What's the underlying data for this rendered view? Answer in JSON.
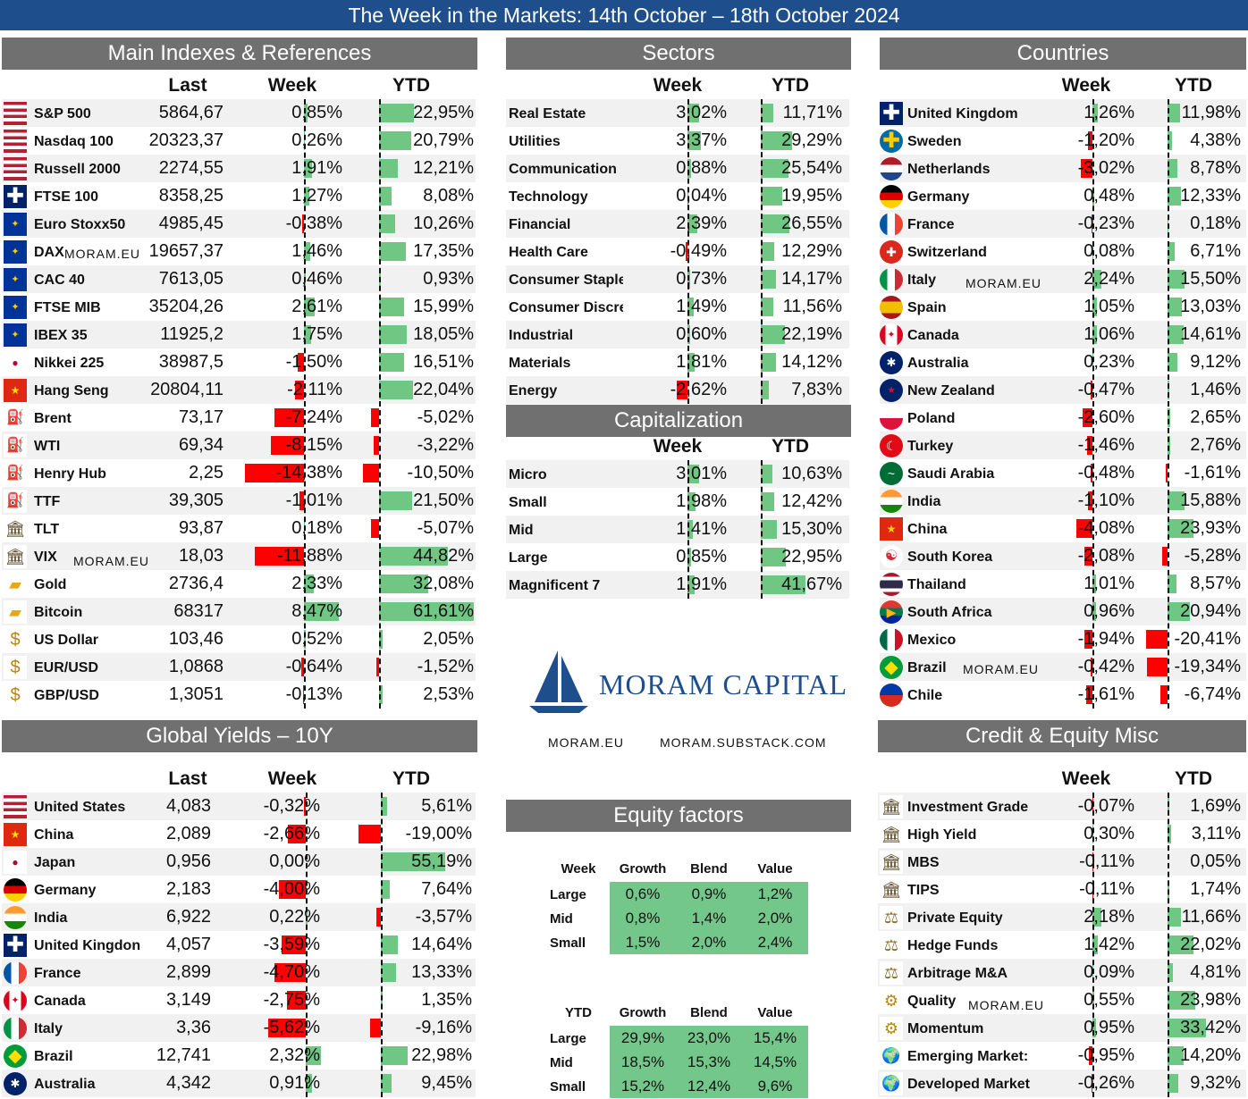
{
  "title": "The Week in the Markets: 14th October – 18th October 2024",
  "colors": {
    "up": "#70c784",
    "down": "#ff0000",
    "header": "#707070",
    "title": "#1f4e8c"
  },
  "watermark": "MORAM.EU",
  "logo": {
    "name": "MORAM CAPITAL",
    "links": [
      "MORAM.EU",
      "MORAM.SUBSTACK.COM"
    ]
  },
  "main": {
    "title": "Main Indexes & References",
    "headers": [
      "Last",
      "Week",
      "YTD"
    ],
    "rows": [
      {
        "icon": "us-flag-icon",
        "name": "S&P 500",
        "last": "5864,67",
        "week": "0,85%",
        "ytd": "22,95%",
        "w": 0.85,
        "y": 22.95
      },
      {
        "icon": "us-flag-icon",
        "name": "Nasdaq 100",
        "last": "20323,37",
        "week": "0,26%",
        "ytd": "20,79%",
        "w": 0.26,
        "y": 20.79
      },
      {
        "icon": "us-flag-icon",
        "name": "Russell 2000",
        "last": "2274,55",
        "week": "1,91%",
        "ytd": "12,21%",
        "w": 1.91,
        "y": 12.21
      },
      {
        "icon": "uk-flag-icon",
        "name": "FTSE 100",
        "last": "8358,25",
        "week": "1,27%",
        "ytd": "8,08%",
        "w": 1.27,
        "y": 8.08
      },
      {
        "icon": "eu-flag-icon",
        "name": "Euro Stoxx50",
        "last": "4985,45",
        "week": "-0,38%",
        "ytd": "10,26%",
        "w": -0.38,
        "y": 10.26
      },
      {
        "icon": "eu-flag-icon",
        "name": "DAX",
        "last": "19657,37",
        "week": "1,46%",
        "ytd": "17,35%",
        "w": 1.46,
        "y": 17.35
      },
      {
        "icon": "eu-flag-icon",
        "name": "CAC 40",
        "last": "7613,05",
        "week": "0,46%",
        "ytd": "0,93%",
        "w": 0.46,
        "y": 0.93
      },
      {
        "icon": "eu-flag-icon",
        "name": "FTSE MIB",
        "last": "35204,26",
        "week": "2,61%",
        "ytd": "15,99%",
        "w": 2.61,
        "y": 15.99
      },
      {
        "icon": "eu-flag-icon",
        "name": "IBEX 35",
        "last": "11925,2",
        "week": "1,75%",
        "ytd": "18,05%",
        "w": 1.75,
        "y": 18.05
      },
      {
        "icon": "japan-flag-icon",
        "name": "Nikkei 225",
        "last": "38987,5",
        "week": "-1,50%",
        "ytd": "16,51%",
        "w": -1.5,
        "y": 16.51
      },
      {
        "icon": "china-flag-icon",
        "name": "Hang Seng",
        "last": "20804,11",
        "week": "-2,11%",
        "ytd": "22,04%",
        "w": -2.11,
        "y": 22.04
      },
      {
        "icon": "oil-rig-icon",
        "name": "Brent",
        "last": "73,17",
        "week": "-7,24%",
        "ytd": "-5,02%",
        "w": -7.24,
        "y": -5.02
      },
      {
        "icon": "oil-rig-icon",
        "name": "WTI",
        "last": "69,34",
        "week": "-8,15%",
        "ytd": "-3,22%",
        "w": -8.15,
        "y": -3.22
      },
      {
        "icon": "oil-rig-icon",
        "name": "Henry Hub",
        "last": "2,25",
        "week": "-14,38%",
        "ytd": "-10,50%",
        "w": -14.38,
        "y": -10.5
      },
      {
        "icon": "oil-rig-icon",
        "name": "TTF",
        "last": "39,305",
        "week": "-1,01%",
        "ytd": "21,50%",
        "w": -1.01,
        "y": 21.5
      },
      {
        "icon": "bank-icon",
        "name": "TLT",
        "last": "93,87",
        "week": "0,18%",
        "ytd": "-5,07%",
        "w": 0.18,
        "y": -5.07
      },
      {
        "icon": "bank-icon",
        "name": "VIX",
        "last": "18,03",
        "week": "-11,88%",
        "ytd": "44,82%",
        "w": -11.88,
        "y": 44.82
      },
      {
        "icon": "gold-icon",
        "name": "Gold",
        "last": "2736,4",
        "week": "2,33%",
        "ytd": "32,08%",
        "w": 2.33,
        "y": 32.08
      },
      {
        "icon": "gold-icon",
        "name": "Bitcoin",
        "last": "68317",
        "week": "8,47%",
        "ytd": "61,61%",
        "w": 8.47,
        "y": 61.61
      },
      {
        "icon": "coins-icon",
        "name": "US Dollar",
        "last": "103,46",
        "week": "0,52%",
        "ytd": "2,05%",
        "w": 0.52,
        "y": 2.05
      },
      {
        "icon": "coins-icon",
        "name": "EUR/USD",
        "last": "1,0868",
        "week": "-0,64%",
        "ytd": "-1,52%",
        "w": -0.64,
        "y": -1.52
      },
      {
        "icon": "coins-icon",
        "name": "GBP/USD",
        "last": "1,3051",
        "week": "-0,13%",
        "ytd": "2,53%",
        "w": -0.13,
        "y": 2.53
      }
    ]
  },
  "sectors": {
    "title": "Sectors",
    "headers": [
      "Week",
      "YTD"
    ],
    "rows": [
      {
        "name": "Real Estate",
        "week": "3,02%",
        "ytd": "11,71%",
        "w": 3.02,
        "y": 11.71
      },
      {
        "name": "Utilities",
        "week": "3,37%",
        "ytd": "29,29%",
        "w": 3.37,
        "y": 29.29
      },
      {
        "name": "Communication",
        "week": "0,88%",
        "ytd": "25,54%",
        "w": 0.88,
        "y": 25.54
      },
      {
        "name": "Technology",
        "week": "0,04%",
        "ytd": "19,95%",
        "w": 0.04,
        "y": 19.95
      },
      {
        "name": "Financial",
        "week": "2,39%",
        "ytd": "26,55%",
        "w": 2.39,
        "y": 26.55
      },
      {
        "name": "Health Care",
        "week": "-0,49%",
        "ytd": "12,29%",
        "w": -0.49,
        "y": 12.29
      },
      {
        "name": "Consumer Staple",
        "week": "0,73%",
        "ytd": "14,17%",
        "w": 0.73,
        "y": 14.17
      },
      {
        "name": "Consumer Discre",
        "week": "1,49%",
        "ytd": "11,56%",
        "w": 1.49,
        "y": 11.56
      },
      {
        "name": "Industrial",
        "week": "0,60%",
        "ytd": "22,19%",
        "w": 0.6,
        "y": 22.19
      },
      {
        "name": "Materials",
        "week": "1,81%",
        "ytd": "14,12%",
        "w": 1.81,
        "y": 14.12
      },
      {
        "name": "Energy",
        "week": "-2,62%",
        "ytd": "7,83%",
        "w": -2.62,
        "y": 7.83
      }
    ]
  },
  "cap": {
    "title": "Capitalization",
    "headers": [
      "Week",
      "YTD"
    ],
    "rows": [
      {
        "name": "Micro",
        "week": "3,01%",
        "ytd": "10,63%",
        "w": 3.01,
        "y": 10.63
      },
      {
        "name": "Small",
        "week": "1,98%",
        "ytd": "12,42%",
        "w": 1.98,
        "y": 12.42
      },
      {
        "name": "Mid",
        "week": "1,41%",
        "ytd": "15,30%",
        "w": 1.41,
        "y": 15.3
      },
      {
        "name": "Large",
        "week": "0,85%",
        "ytd": "22,95%",
        "w": 0.85,
        "y": 22.95
      },
      {
        "name": "Magnificent 7",
        "week": "1,91%",
        "ytd": "41,67%",
        "w": 1.91,
        "y": 41.67
      }
    ]
  },
  "countries": {
    "title": "Countries",
    "headers": [
      "Week",
      "YTD"
    ],
    "rows": [
      {
        "icon": "uk-flag-icon",
        "name": "United Kingdom",
        "week": "1,26%",
        "ytd": "11,98%",
        "w": 1.26,
        "y": 11.98
      },
      {
        "icon": "sweden-flag-icon",
        "name": "Sweden",
        "week": "-1,20%",
        "ytd": "4,38%",
        "w": -1.2,
        "y": 4.38
      },
      {
        "icon": "netherlands-flag-icon",
        "name": "Netherlands",
        "week": "-3,02%",
        "ytd": "8,78%",
        "w": -3.02,
        "y": 8.78
      },
      {
        "icon": "germany-flag-icon",
        "name": "Germany",
        "week": "0,48%",
        "ytd": "12,33%",
        "w": 0.48,
        "y": 12.33
      },
      {
        "icon": "france-flag-icon",
        "name": "France",
        "week": "-0,23%",
        "ytd": "0,18%",
        "w": -0.23,
        "y": 0.18
      },
      {
        "icon": "switzerland-flag-icon",
        "name": "Switzerland",
        "week": "0,08%",
        "ytd": "6,71%",
        "w": 0.08,
        "y": 6.71
      },
      {
        "icon": "italy-flag-icon",
        "name": "Italy",
        "week": "2,24%",
        "ytd": "15,50%",
        "w": 2.24,
        "y": 15.5
      },
      {
        "icon": "spain-flag-icon",
        "name": "Spain",
        "week": "1,05%",
        "ytd": "13,03%",
        "w": 1.05,
        "y": 13.03
      },
      {
        "icon": "canada-flag-icon",
        "name": "Canada",
        "week": "1,06%",
        "ytd": "14,61%",
        "w": 1.06,
        "y": 14.61
      },
      {
        "icon": "australia-flag-icon",
        "name": "Australia",
        "week": "0,23%",
        "ytd": "9,12%",
        "w": 0.23,
        "y": 9.12
      },
      {
        "icon": "new-zealand-flag-icon",
        "name": "New Zealand",
        "week": "-0,47%",
        "ytd": "1,46%",
        "w": -0.47,
        "y": 1.46
      },
      {
        "icon": "poland-flag-icon",
        "name": "Poland",
        "week": "-2,60%",
        "ytd": "2,65%",
        "w": -2.6,
        "y": 2.65
      },
      {
        "icon": "turkey-flag-icon",
        "name": "Turkey",
        "week": "-1,46%",
        "ytd": "2,76%",
        "w": -1.46,
        "y": 2.76
      },
      {
        "icon": "saudi-arabia-flag-icon",
        "name": "Saudi Arabia",
        "week": "-0,48%",
        "ytd": "-1,61%",
        "w": -0.48,
        "y": -1.61
      },
      {
        "icon": "india-flag-icon",
        "name": "India",
        "week": "-1,10%",
        "ytd": "15,88%",
        "w": -1.1,
        "y": 15.88
      },
      {
        "icon": "china-flag-icon",
        "name": "China",
        "week": "-4,08%",
        "ytd": "23,93%",
        "w": -4.08,
        "y": 23.93
      },
      {
        "icon": "south-korea-flag-icon",
        "name": "South Korea",
        "week": "-2,08%",
        "ytd": "-5,28%",
        "w": -2.08,
        "y": -5.28
      },
      {
        "icon": "thailand-flag-icon",
        "name": "Thailand",
        "week": "1,01%",
        "ytd": "8,57%",
        "w": 1.01,
        "y": 8.57
      },
      {
        "icon": "south-africa-flag-icon",
        "name": "South Africa",
        "week": "0,96%",
        "ytd": "20,94%",
        "w": 0.96,
        "y": 20.94
      },
      {
        "icon": "mexico-flag-icon",
        "name": "Mexico",
        "week": "-1,94%",
        "ytd": "-20,41%",
        "w": -1.94,
        "y": -20.41
      },
      {
        "icon": "brazil-flag-icon",
        "name": "Brazil",
        "week": "-0,42%",
        "ytd": "-19,34%",
        "w": -0.42,
        "y": -19.34
      },
      {
        "icon": "chile-flag-icon",
        "name": "Chile",
        "week": "-1,61%",
        "ytd": "-6,74%",
        "w": -1.61,
        "y": -6.74
      }
    ]
  },
  "yields": {
    "title": "Global Yields – 10Y",
    "headers": [
      "Last",
      "Week",
      "YTD"
    ],
    "rows": [
      {
        "icon": "us-flag-icon",
        "name": "United States",
        "last": "4,083",
        "week": "-0,32%",
        "ytd": "5,61%",
        "w": -0.32,
        "y": 5.61
      },
      {
        "icon": "china-flag-icon",
        "name": "China",
        "last": "2,089",
        "week": "-2,66%",
        "ytd": "-19,00%",
        "w": -2.66,
        "y": -19.0
      },
      {
        "icon": "japan-flag-icon",
        "name": "Japan",
        "last": "0,956",
        "week": "0,00%",
        "ytd": "55,19%",
        "w": 0.0,
        "y": 55.19
      },
      {
        "icon": "germany-flag-icon",
        "name": "Germany",
        "last": "2,183",
        "week": "-4,00%",
        "ytd": "7,64%",
        "w": -4.0,
        "y": 7.64
      },
      {
        "icon": "india-flag-icon",
        "name": "India",
        "last": "6,922",
        "week": "0,22%",
        "ytd": "-3,57%",
        "w": 0.22,
        "y": -3.57
      },
      {
        "icon": "uk-flag-icon",
        "name": "United Kingdon",
        "last": "4,057",
        "week": "-3,59%",
        "ytd": "14,64%",
        "w": -3.59,
        "y": 14.64
      },
      {
        "icon": "france-flag-icon",
        "name": "France",
        "last": "2,899",
        "week": "-4,70%",
        "ytd": "13,33%",
        "w": -4.7,
        "y": 13.33
      },
      {
        "icon": "canada-flag-icon",
        "name": "Canada",
        "last": "3,149",
        "week": "-2,75%",
        "ytd": "1,35%",
        "w": -2.75,
        "y": 1.35
      },
      {
        "icon": "italy-flag-icon",
        "name": "Italy",
        "last": "3,36",
        "week": "-5,62%",
        "ytd": "-9,16%",
        "w": -5.62,
        "y": -9.16
      },
      {
        "icon": "brazil-flag-icon",
        "name": "Brazil",
        "last": "12,741",
        "week": "2,32%",
        "ytd": "22,98%",
        "w": 2.32,
        "y": 22.98
      },
      {
        "icon": "australia-flag-icon",
        "name": "Australia",
        "last": "4,342",
        "week": "0,91%",
        "ytd": "9,45%",
        "w": 0.91,
        "y": 9.45
      }
    ]
  },
  "credit": {
    "title": "Credit & Equity Misc",
    "headers": [
      "Week",
      "YTD"
    ],
    "rows": [
      {
        "icon": "bank-icon",
        "name": "Investment Grade",
        "week": "-0,07%",
        "ytd": "1,69%",
        "w": -0.07,
        "y": 1.69
      },
      {
        "icon": "bank-icon",
        "name": "High Yield",
        "week": "0,30%",
        "ytd": "3,11%",
        "w": 0.3,
        "y": 3.11
      },
      {
        "icon": "bank-icon",
        "name": "MBS",
        "week": "-0,11%",
        "ytd": "0,05%",
        "w": -0.11,
        "y": 0.05
      },
      {
        "icon": "bank-icon",
        "name": "TIPS",
        "week": "-0,11%",
        "ytd": "1,74%",
        "w": -0.11,
        "y": 1.74
      },
      {
        "icon": "scales-icon",
        "name": "Private Equity",
        "week": "2,18%",
        "ytd": "11,66%",
        "w": 2.18,
        "y": 11.66
      },
      {
        "icon": "scales-icon",
        "name": "Hedge Funds",
        "week": "1,42%",
        "ytd": "22,02%",
        "w": 1.42,
        "y": 22.02
      },
      {
        "icon": "scales-icon",
        "name": "Arbitrage M&A",
        "week": "0,09%",
        "ytd": "4,81%",
        "w": 0.09,
        "y": 4.81
      },
      {
        "icon": "gear-coin-icon",
        "name": "Quality",
        "week": "0,55%",
        "ytd": "23,98%",
        "w": 0.55,
        "y": 23.98
      },
      {
        "icon": "gear-coin-icon",
        "name": "Momentum",
        "week": "0,95%",
        "ytd": "33,42%",
        "w": 0.95,
        "y": 33.42
      },
      {
        "icon": "globe-icon",
        "name": "Emerging Market:",
        "week": "-0,95%",
        "ytd": "14,20%",
        "w": -0.95,
        "y": 14.2
      },
      {
        "icon": "globe-icon",
        "name": "Developed Market",
        "week": "-0,26%",
        "ytd": "9,32%",
        "w": -0.26,
        "y": 9.32
      }
    ]
  },
  "factors": {
    "title": "Equity factors",
    "tables": [
      {
        "label": "Week",
        "cols": [
          "Growth",
          "Blend",
          "Value"
        ],
        "rows": [
          {
            "name": "Large",
            "vals": [
              "0,6%",
              "0,9%",
              "1,2%"
            ]
          },
          {
            "name": "Mid",
            "vals": [
              "0,8%",
              "1,4%",
              "2,0%"
            ]
          },
          {
            "name": "Small",
            "vals": [
              "1,5%",
              "2,0%",
              "2,4%"
            ]
          }
        ]
      },
      {
        "label": "YTD",
        "cols": [
          "Growth",
          "Blend",
          "Value"
        ],
        "rows": [
          {
            "name": "Large",
            "vals": [
              "29,9%",
              "23,0%",
              "15,4%"
            ]
          },
          {
            "name": "Mid",
            "vals": [
              "18,5%",
              "15,3%",
              "14,5%"
            ]
          },
          {
            "name": "Small",
            "vals": [
              "15,2%",
              "12,4%",
              "9,6%"
            ]
          }
        ]
      }
    ]
  }
}
